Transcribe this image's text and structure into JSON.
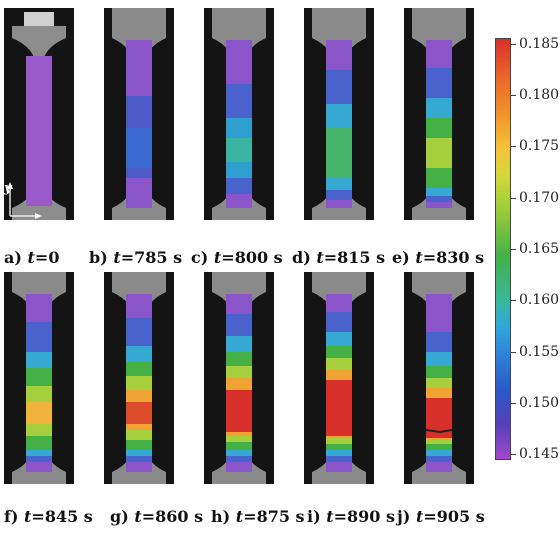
{
  "top_captions": [
    {
      "letter": "a)",
      "t": "t",
      "eq": "=0"
    },
    {
      "letter": "b)",
      "t": "t",
      "eq": "=785 s"
    },
    {
      "letter": "c)",
      "t": "t",
      "eq": "=800 s"
    },
    {
      "letter": "d)",
      "t": "t",
      "eq": "=815 s"
    },
    {
      "letter": "e)",
      "t": "t",
      "eq": "=830 s"
    }
  ],
  "bottom_captions": [
    {
      "letter": "f)",
      "t": "t",
      "eq": "=845 s"
    },
    {
      "letter": "g)",
      "t": "t",
      "eq": "=860 s"
    },
    {
      "letter": "h)",
      "t": "t",
      "eq": "=875 s"
    },
    {
      "letter": "i)",
      "t": "t",
      "eq": "=890 s"
    },
    {
      "letter": "j)",
      "t": "t",
      "eq": "=905 s"
    }
  ],
  "axis": {
    "y": "y",
    "x": "x"
  },
  "colorbar": {
    "ticks": [
      "0.185",
      "0.180",
      "0.175",
      "0.170",
      "0.165",
      "0.160",
      "0.155",
      "0.150",
      "0.145"
    ],
    "colors": [
      "#d7302a",
      "#f08a2a",
      "#f4c23a",
      "#9fce3a",
      "#43b04a",
      "#31a8d8",
      "#2a58c8",
      "#5b3fb8",
      "#a24ac8"
    ]
  }
}
